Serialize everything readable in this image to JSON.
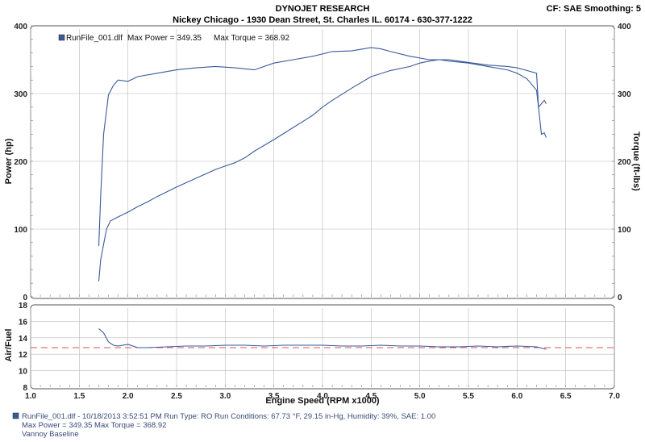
{
  "header": {
    "title": "DYNOJET RESEARCH",
    "subtitle": "Nickey Chicago - 1930 Dean Street, St. Charles IL. 60174 - 630-377-1222",
    "cf": "CF: SAE  Smoothing: 5"
  },
  "legend": {
    "file": "RunFile_001.dlf",
    "max_power": "Max Power = 349.35",
    "max_torque": "Max Torque = 368.92"
  },
  "footer": {
    "line1": "RunFile_001.dlf - 10/18/2013 3:52:51 PM  Run Type: RO  Run Conditions: 67.73 °F, 29.15 in-Hg,  Humidity:  39%, SAE: 1.00",
    "line2": "Max Power = 349.35  Max Torque = 368.92",
    "line3": "Vannoy Baseline"
  },
  "colors": {
    "curve": "#3a5a9a",
    "target": "#e05050",
    "grid": "#b8b8b8"
  },
  "chart_data": [
    {
      "type": "line",
      "xlabel": "Engine Speed (RPM x1000)",
      "ylabel": "Power (hp)",
      "y2label": "Torque (ft-lbs)",
      "xlim": [
        1.0,
        7.0
      ],
      "ylim": [
        0,
        400
      ],
      "y2lim": [
        0,
        400
      ],
      "x_ticks": [
        "1.0",
        "1.5",
        "2.0",
        "2.5",
        "3.0",
        "3.5",
        "4.0",
        "4.5",
        "5.0",
        "5.5",
        "6.0",
        "6.5",
        "7.0"
      ],
      "y_ticks": [
        "0",
        "100",
        "200",
        "300",
        "400"
      ],
      "y2_ticks": [
        "0",
        "100",
        "200",
        "300",
        "400"
      ],
      "grid": true,
      "legend_position": "top-left",
      "series": [
        {
          "name": "Power",
          "x": [
            1.7,
            1.72,
            1.78,
            1.82,
            1.9,
            2.0,
            2.1,
            2.2,
            2.3,
            2.5,
            2.7,
            2.9,
            3.0,
            3.1,
            3.2,
            3.3,
            3.5,
            3.7,
            3.9,
            4.0,
            4.1,
            4.3,
            4.5,
            4.7,
            4.9,
            5.0,
            5.1,
            5.2,
            5.3,
            5.5,
            5.7,
            5.9,
            6.0,
            6.1,
            6.2,
            6.22,
            6.25,
            6.28,
            6.3
          ],
          "y": [
            23,
            55,
            100,
            112,
            118,
            125,
            133,
            140,
            148,
            162,
            175,
            188,
            193,
            198,
            205,
            215,
            232,
            250,
            268,
            280,
            290,
            308,
            325,
            334,
            340,
            345,
            348,
            350,
            348,
            345,
            340,
            335,
            330,
            322,
            305,
            280,
            240,
            242,
            235
          ]
        },
        {
          "name": "Torque",
          "x": [
            1.7,
            1.72,
            1.75,
            1.8,
            1.85,
            1.9,
            2.0,
            2.1,
            2.3,
            2.5,
            2.7,
            2.9,
            3.1,
            3.3,
            3.5,
            3.7,
            3.9,
            4.1,
            4.3,
            4.5,
            4.6,
            4.7,
            4.9,
            5.1,
            5.3,
            5.5,
            5.7,
            5.9,
            6.0,
            6.1,
            6.2,
            6.22,
            6.25,
            6.28,
            6.3
          ],
          "y": [
            75,
            150,
            240,
            298,
            312,
            320,
            318,
            325,
            330,
            335,
            338,
            340,
            338,
            335,
            345,
            350,
            355,
            362,
            363,
            368,
            366,
            362,
            355,
            350,
            350,
            346,
            342,
            340,
            338,
            334,
            330,
            280,
            285,
            290,
            285
          ]
        }
      ]
    },
    {
      "type": "line",
      "ylabel": "Air/Fuel",
      "xlim": [
        1.0,
        7.0
      ],
      "ylim": [
        8,
        18
      ],
      "y_ticks": [
        "8",
        "10",
        "12",
        "14",
        "16",
        "18"
      ],
      "grid": true,
      "series": [
        {
          "name": "Air/Fuel",
          "x": [
            1.7,
            1.75,
            1.8,
            1.85,
            1.9,
            2.0,
            2.1,
            2.2,
            2.4,
            2.6,
            2.8,
            3.0,
            3.2,
            3.4,
            3.6,
            3.8,
            4.0,
            4.2,
            4.4,
            4.6,
            4.8,
            5.0,
            5.2,
            5.4,
            5.6,
            5.8,
            6.0,
            6.2,
            6.3
          ],
          "y": [
            15.1,
            14.6,
            13.5,
            13.1,
            13.0,
            13.2,
            12.8,
            12.8,
            12.9,
            13.0,
            13.0,
            13.1,
            13.1,
            13.0,
            13.1,
            13.1,
            13.1,
            13.0,
            13.0,
            13.1,
            13.0,
            13.0,
            12.9,
            12.9,
            13.0,
            12.9,
            13.0,
            12.9,
            12.6
          ]
        },
        {
          "name": "Target",
          "x": [
            1.0,
            7.0
          ],
          "y": [
            12.8,
            12.8
          ]
        }
      ]
    }
  ]
}
